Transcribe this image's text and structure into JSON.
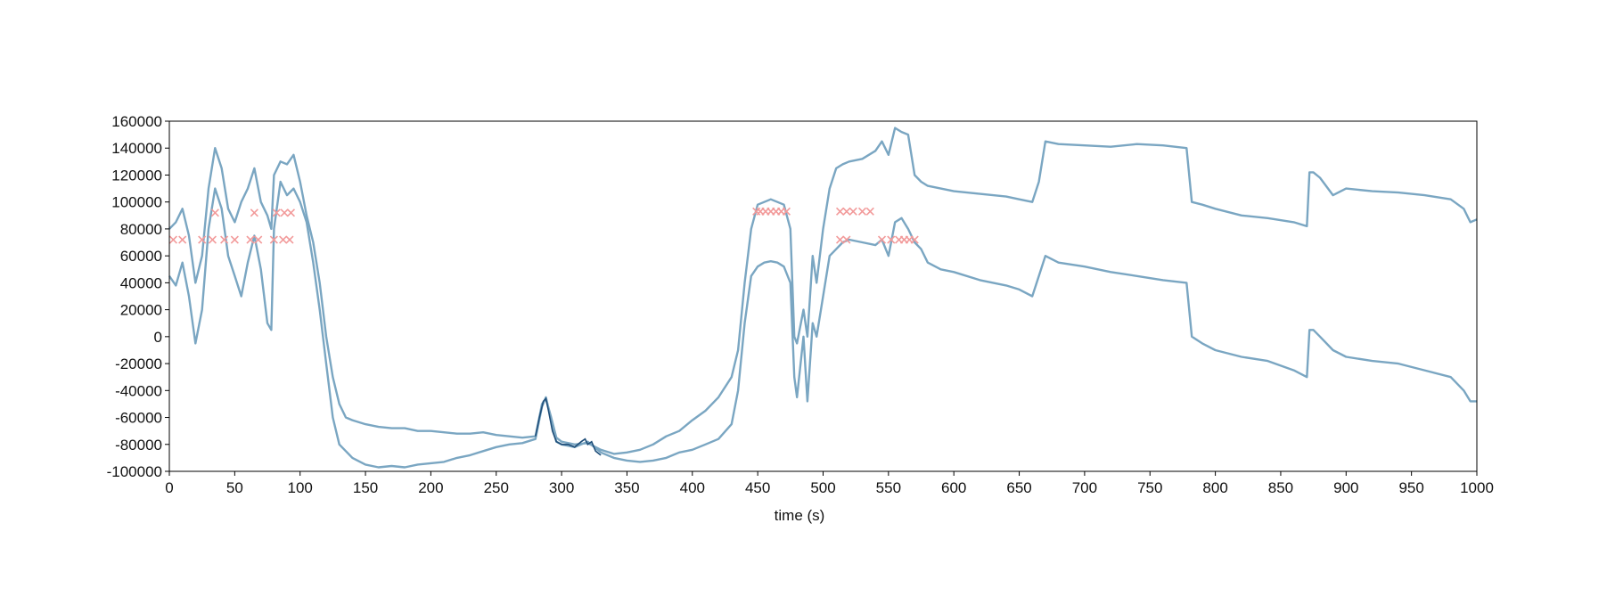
{
  "chart_data": {
    "type": "line",
    "title": "",
    "xlabel": "time (s)",
    "ylabel": "",
    "xlim": [
      0,
      1000
    ],
    "ylim": [
      -100000,
      160000
    ],
    "xticks": [
      0,
      50,
      100,
      150,
      200,
      250,
      300,
      350,
      400,
      450,
      500,
      550,
      600,
      650,
      700,
      750,
      800,
      850,
      900,
      950,
      1000
    ],
    "yticks": [
      -100000,
      -80000,
      -60000,
      -40000,
      -20000,
      0,
      20000,
      40000,
      60000,
      80000,
      100000,
      120000,
      140000,
      160000
    ],
    "grid": false,
    "colors": {
      "series": "#7aa6c2",
      "highlight": "#1f4e79",
      "markers": "#f29a9a"
    },
    "series": [
      {
        "x": [
          0,
          5,
          10,
          15,
          20,
          25,
          30,
          35,
          40,
          45,
          50,
          55,
          60,
          65,
          70,
          75,
          78,
          80,
          85,
          90,
          95,
          100,
          105,
          110,
          115,
          120,
          125,
          130,
          135,
          140,
          150,
          160,
          170,
          180,
          190,
          200,
          210,
          220,
          230,
          240,
          250,
          260,
          270,
          280,
          285,
          288,
          292,
          296,
          300,
          310,
          320,
          330,
          340,
          350,
          360,
          370,
          380,
          390,
          400,
          410,
          420,
          430,
          435,
          440,
          445,
          450,
          455,
          460,
          465,
          470,
          475,
          478,
          480,
          485,
          488,
          492,
          495,
          500,
          505,
          510,
          515,
          520,
          530,
          540,
          545,
          550,
          555,
          560,
          565,
          570,
          575,
          580,
          590,
          600,
          620,
          640,
          650,
          660,
          665,
          670,
          680,
          700,
          720,
          740,
          760,
          778,
          782,
          790,
          800,
          820,
          840,
          860,
          870,
          872,
          875,
          880,
          890,
          900,
          920,
          940,
          960,
          980,
          990,
          995,
          1000
        ],
        "y": [
          80000,
          85000,
          95000,
          75000,
          40000,
          60000,
          110000,
          140000,
          125000,
          95000,
          85000,
          100000,
          110000,
          125000,
          100000,
          90000,
          80000,
          120000,
          130000,
          128000,
          135000,
          115000,
          90000,
          70000,
          40000,
          0,
          -30000,
          -50000,
          -60000,
          -62000,
          -65000,
          -67000,
          -68000,
          -68000,
          -70000,
          -70000,
          -71000,
          -72000,
          -72000,
          -71000,
          -73000,
          -74000,
          -75000,
          -74000,
          -50000,
          -46000,
          -60000,
          -75000,
          -78000,
          -80000,
          -79000,
          -84000,
          -87000,
          -86000,
          -84000,
          -80000,
          -74000,
          -70000,
          -62000,
          -55000,
          -45000,
          -30000,
          -10000,
          40000,
          80000,
          98000,
          100000,
          102000,
          100000,
          98000,
          80000,
          0,
          -5000,
          20000,
          0,
          60000,
          40000,
          80000,
          110000,
          125000,
          128000,
          130000,
          132000,
          138000,
          145000,
          135000,
          155000,
          152000,
          150000,
          120000,
          115000,
          112000,
          110000,
          108000,
          106000,
          104000,
          102000,
          100000,
          115000,
          145000,
          143000,
          142000,
          141000,
          143000,
          142000,
          140000,
          100000,
          98000,
          95000,
          90000,
          88000,
          85000,
          82000,
          122000,
          122000,
          118000,
          105000,
          110000,
          108000,
          107000,
          105000,
          102000,
          95000,
          85000,
          87000
        ]
      },
      {
        "x": [
          0,
          5,
          10,
          15,
          20,
          25,
          30,
          35,
          40,
          45,
          50,
          55,
          60,
          65,
          70,
          75,
          78,
          80,
          85,
          90,
          95,
          100,
          105,
          110,
          115,
          120,
          125,
          130,
          135,
          140,
          150,
          160,
          170,
          180,
          190,
          200,
          210,
          220,
          230,
          240,
          250,
          260,
          270,
          280,
          285,
          288,
          292,
          296,
          300,
          310,
          320,
          330,
          340,
          350,
          360,
          370,
          380,
          390,
          400,
          410,
          420,
          430,
          435,
          440,
          445,
          450,
          455,
          460,
          465,
          470,
          475,
          478,
          480,
          485,
          488,
          492,
          495,
          500,
          505,
          510,
          515,
          520,
          530,
          540,
          545,
          550,
          555,
          560,
          565,
          570,
          575,
          580,
          590,
          600,
          620,
          640,
          650,
          660,
          665,
          670,
          680,
          700,
          720,
          740,
          760,
          778,
          782,
          790,
          800,
          820,
          840,
          860,
          870,
          872,
          875,
          880,
          890,
          900,
          920,
          940,
          960,
          980,
          990,
          995,
          1000
        ],
        "y": [
          45000,
          38000,
          55000,
          30000,
          -5000,
          20000,
          80000,
          110000,
          95000,
          60000,
          45000,
          30000,
          55000,
          75000,
          50000,
          10000,
          5000,
          80000,
          115000,
          105000,
          110000,
          100000,
          85000,
          55000,
          20000,
          -20000,
          -60000,
          -80000,
          -85000,
          -90000,
          -95000,
          -97000,
          -96000,
          -97000,
          -95000,
          -94000,
          -93000,
          -90000,
          -88000,
          -85000,
          -82000,
          -80000,
          -79000,
          -76000,
          -52000,
          -45000,
          -62000,
          -78000,
          -80000,
          -82000,
          -78000,
          -86000,
          -90000,
          -92000,
          -93000,
          -92000,
          -90000,
          -86000,
          -84000,
          -80000,
          -76000,
          -65000,
          -40000,
          10000,
          45000,
          52000,
          55000,
          56000,
          55000,
          52000,
          40000,
          -30000,
          -45000,
          0,
          -48000,
          10000,
          0,
          30000,
          60000,
          65000,
          70000,
          72000,
          70000,
          68000,
          72000,
          60000,
          85000,
          88000,
          80000,
          70000,
          65000,
          55000,
          50000,
          48000,
          42000,
          38000,
          35000,
          30000,
          45000,
          60000,
          55000,
          52000,
          48000,
          45000,
          42000,
          40000,
          0,
          -5000,
          -10000,
          -15000,
          -18000,
          -25000,
          -30000,
          5000,
          5000,
          0,
          -10000,
          -15000,
          -18000,
          -20000,
          -25000,
          -30000,
          -40000,
          -48000,
          -48000
        ]
      }
    ],
    "highlight_segment": {
      "x": [
        280,
        283,
        286,
        288,
        290,
        293,
        296,
        300,
        305,
        310,
        315,
        318,
        320,
        323,
        326,
        330
      ],
      "y": [
        -74000,
        -60000,
        -48000,
        -46000,
        -55000,
        -70000,
        -78000,
        -80000,
        -80000,
        -82000,
        -78000,
        -76000,
        -80000,
        -78000,
        -85000,
        -88000
      ]
    },
    "markers": [
      {
        "x": 3,
        "y": 72000
      },
      {
        "x": 10,
        "y": 72000
      },
      {
        "x": 25,
        "y": 72000
      },
      {
        "x": 33,
        "y": 72000
      },
      {
        "x": 42,
        "y": 72000
      },
      {
        "x": 50,
        "y": 72000
      },
      {
        "x": 62,
        "y": 72000
      },
      {
        "x": 68,
        "y": 72000
      },
      {
        "x": 80,
        "y": 72000
      },
      {
        "x": 87,
        "y": 72000
      },
      {
        "x": 92,
        "y": 72000
      },
      {
        "x": 35,
        "y": 92000
      },
      {
        "x": 65,
        "y": 92000
      },
      {
        "x": 82,
        "y": 92000
      },
      {
        "x": 88,
        "y": 92000
      },
      {
        "x": 93,
        "y": 92000
      },
      {
        "x": 449,
        "y": 93000
      },
      {
        "x": 452,
        "y": 93000
      },
      {
        "x": 456,
        "y": 93000
      },
      {
        "x": 460,
        "y": 93000
      },
      {
        "x": 464,
        "y": 93000
      },
      {
        "x": 468,
        "y": 93000
      },
      {
        "x": 472,
        "y": 93000
      },
      {
        "x": 513,
        "y": 93000
      },
      {
        "x": 518,
        "y": 93000
      },
      {
        "x": 523,
        "y": 93000
      },
      {
        "x": 530,
        "y": 93000
      },
      {
        "x": 536,
        "y": 93000
      },
      {
        "x": 513,
        "y": 72000
      },
      {
        "x": 518,
        "y": 72000
      },
      {
        "x": 545,
        "y": 72000
      },
      {
        "x": 552,
        "y": 72000
      },
      {
        "x": 558,
        "y": 72000
      },
      {
        "x": 562,
        "y": 72000
      },
      {
        "x": 566,
        "y": 72000
      },
      {
        "x": 570,
        "y": 72000
      }
    ]
  }
}
